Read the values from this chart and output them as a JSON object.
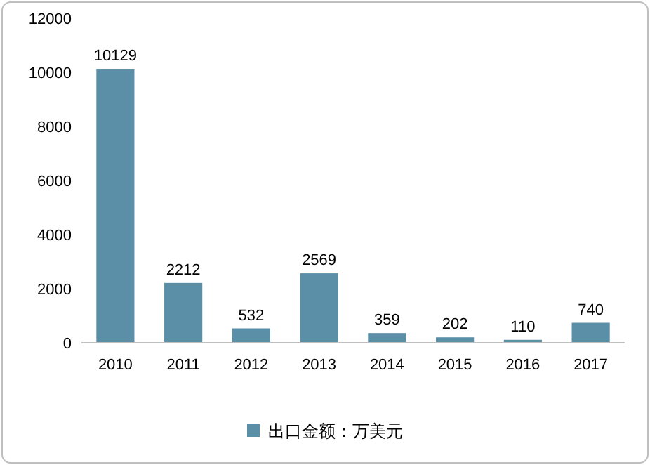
{
  "chart_data": {
    "type": "bar",
    "categories": [
      "2010",
      "2011",
      "2012",
      "2013",
      "2014",
      "2015",
      "2016",
      "2017"
    ],
    "series": [
      {
        "name": "出口金额：万美元",
        "color": "#5b8fa8",
        "values": [
          10129,
          2212,
          532,
          2569,
          359,
          202,
          110,
          740
        ]
      }
    ],
    "ylim": [
      0,
      12000
    ],
    "yticks": [
      0,
      2000,
      4000,
      6000,
      8000,
      10000,
      12000
    ],
    "data_labels": true,
    "grid": false,
    "legend": "bottom"
  }
}
